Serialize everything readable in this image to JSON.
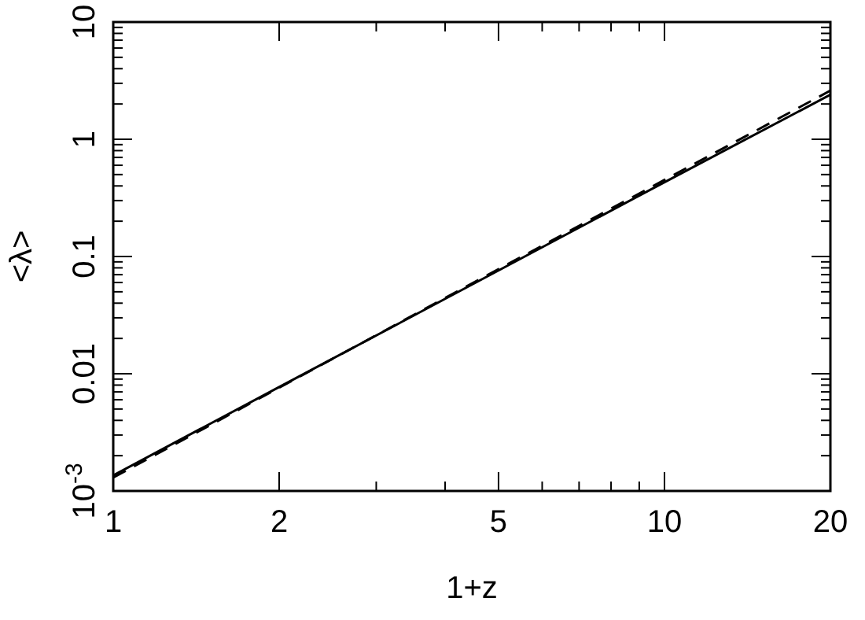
{
  "chart_data": {
    "type": "line",
    "xlabel": "1+z",
    "ylabel": "<λ>",
    "log": "xy",
    "x": [
      1,
      2,
      5,
      10,
      20
    ],
    "xlim": [
      1,
      20
    ],
    "ylim": [
      0.001,
      10
    ],
    "xticks": [
      1,
      2,
      5,
      10,
      20
    ],
    "yticks": [
      {
        "value": 0.001,
        "label": "10$^{-3}$"
      },
      0.01,
      0.1,
      1,
      10
    ],
    "grid": false,
    "series": [
      {
        "color": "#000000",
        "line_style": "solid",
        "values": [
          0.00136,
          0.0077,
          0.076,
          0.43,
          2.4
        ]
      },
      {
        "color": "#000000",
        "line_style": "dashed",
        "values": [
          0.0013,
          0.0076,
          0.078,
          0.45,
          2.6
        ]
      }
    ]
  }
}
